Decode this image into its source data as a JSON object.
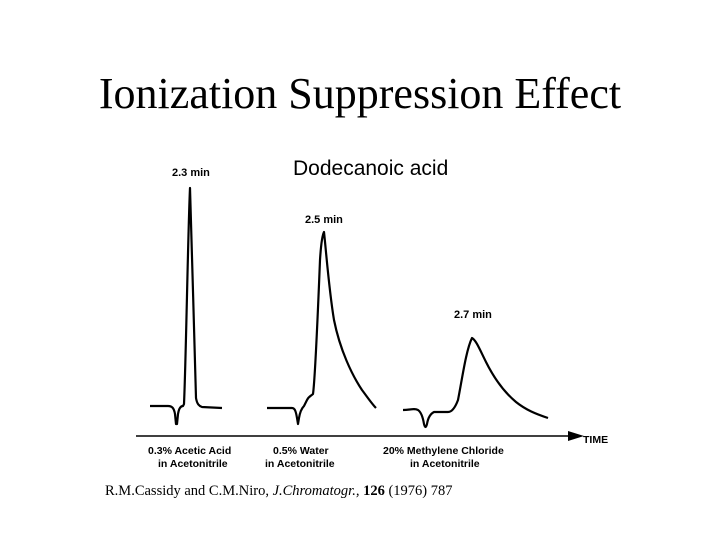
{
  "slide": {
    "title": "Ionization Suppression Effect"
  },
  "figure": {
    "compound_label": "Dodecanoic acid",
    "axis_label": "TIME",
    "peaks": [
      {
        "time_label": "2.3 min",
        "condition_line1": "0.3% Acetic Acid",
        "condition_line2": "in Acetonitrile"
      },
      {
        "time_label": "2.5 min",
        "condition_line1": "0.5% Water",
        "condition_line2": "in Acetonitrile"
      },
      {
        "time_label": "2.7 min",
        "condition_line1": "20% Methylene Chloride",
        "condition_line2": "in Acetonitrile"
      }
    ]
  },
  "citation": {
    "authors": "R.M.Cassidy and C.M.Niro,",
    "journal": "J.Chromatogr.,",
    "volume": "126",
    "year": "(1976)",
    "page": "787"
  }
}
